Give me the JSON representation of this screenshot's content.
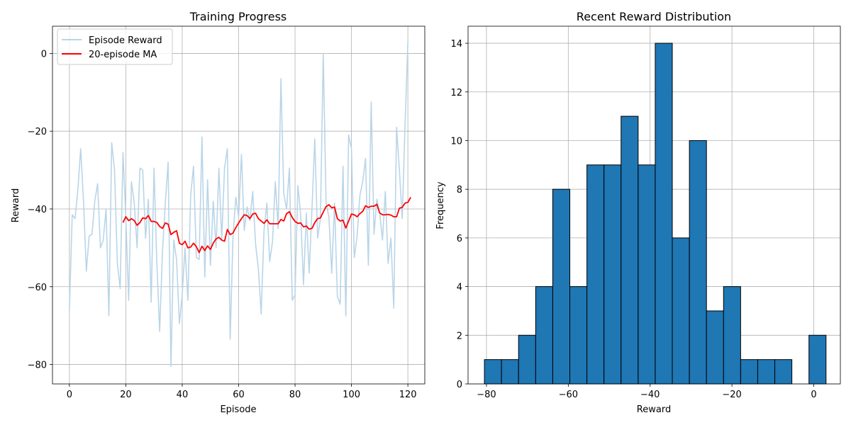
{
  "chart_data": [
    {
      "type": "line",
      "title": "Training Progress",
      "xlabel": "Episode",
      "ylabel": "Reward",
      "xlim": [
        -6,
        126
      ],
      "ylim": [
        -85,
        7
      ],
      "xticks": [
        0,
        20,
        40,
        60,
        80,
        100,
        120
      ],
      "yticks": [
        -80,
        -60,
        -40,
        -20,
        0
      ],
      "grid": true,
      "legend": "top-left",
      "series": [
        {
          "name": "Episode Reward",
          "color": "#b9d5e8",
          "x_start": 0,
          "values": [
            -66,
            -41.5,
            -42.5,
            -35,
            -24.5,
            -38,
            -56,
            -47,
            -46.5,
            -38,
            -33.5,
            -50,
            -48,
            -40,
            -67.5,
            -23,
            -30,
            -54,
            -60.5,
            -25.5,
            -42,
            -63.5,
            -33,
            -38.5,
            -50,
            -29.5,
            -30,
            -47.5,
            -37.5,
            -64,
            -29.5,
            -54,
            -71.5,
            -51,
            -38.5,
            -28,
            -80.5,
            -48,
            -53,
            -69.5,
            -62,
            -50,
            -63.5,
            -36.5,
            -29,
            -52.5,
            -53,
            -21.5,
            -57.5,
            -32.5,
            -54.5,
            -38,
            -50,
            -29.5,
            -48,
            -29.5,
            -24.5,
            -73.5,
            -47,
            -37,
            -42,
            -26,
            -45.5,
            -39.5,
            -43,
            -35.5,
            -49,
            -55.5,
            -67,
            -45.5,
            -38.5,
            -53.5,
            -48.5,
            -33,
            -45,
            -6.5,
            -36,
            -40,
            -29.5,
            -63.5,
            -62,
            -34,
            -41.5,
            -59.5,
            -41,
            -56.5,
            -40,
            -22,
            -47.5,
            -42.5,
            0,
            -38.5,
            -42,
            -56.5,
            -38.5,
            -62.5,
            -64.5,
            -29,
            -67.5,
            -21,
            -24.5,
            -52.5,
            -47,
            -36.5,
            -33,
            -27,
            -54.5,
            -12.5,
            -46.5,
            -37.5,
            -41,
            -48,
            -35.5,
            -54,
            -47.5,
            -65.5,
            -19,
            -30,
            -42.5,
            -18.5,
            3
          ]
        },
        {
          "name": "20-episode MA",
          "color": "#ff0000",
          "x_start": 19,
          "values": [
            -43.5,
            -42,
            -43,
            -42.5,
            -43,
            -44.2,
            -43.5,
            -42.3,
            -42.5,
            -41.7,
            -43.2,
            -43.2,
            -43.5,
            -44.5,
            -45,
            -43.6,
            -43.9,
            -46.6,
            -46,
            -45.6,
            -48.8,
            -49.2,
            -48.3,
            -50,
            -49.8,
            -48.8,
            -49.7,
            -51.2,
            -49.6,
            -50.7,
            -49.5,
            -50.4,
            -48.8,
            -47.7,
            -47.3,
            -48,
            -48.3,
            -45.3,
            -46.6,
            -46.2,
            -44.8,
            -43.6,
            -42.5,
            -41.5,
            -41.7,
            -42.5,
            -41.3,
            -41.1,
            -42.5,
            -43.1,
            -43.7,
            -42.8,
            -43.8,
            -43.8,
            -43.8,
            -43.8,
            -42.7,
            -43.1,
            -41.2,
            -40.7,
            -42.2,
            -43.2,
            -43.7,
            -43.6,
            -44.6,
            -44.4,
            -45.2,
            -45,
            -43.5,
            -42.5,
            -42.3,
            -40.8,
            -39.4,
            -38.9,
            -39.7,
            -39.5,
            -42.5,
            -43.1,
            -42.9,
            -44.9,
            -43.1,
            -41.3,
            -41.5,
            -42,
            -41.2,
            -40.6,
            -39.2,
            -39.6,
            -39.3,
            -39.3,
            -38.8,
            -41,
            -41.5,
            -41.5,
            -41.4,
            -41.6,
            -42,
            -42,
            -39.8,
            -39.6,
            -38.5,
            -38.3,
            -37
          ]
        }
      ]
    },
    {
      "type": "bar",
      "title": "Recent Reward Distribution",
      "xlabel": "Reward",
      "ylabel": "Frequency",
      "xlim": [
        -84.5,
        6.5
      ],
      "ylim": [
        0,
        14.7
      ],
      "xticks": [
        -80,
        -60,
        -40,
        -20,
        0
      ],
      "yticks": [
        0,
        2,
        4,
        6,
        8,
        10,
        12,
        14
      ],
      "grid": true,
      "bar_color": "#1f77b4",
      "bin_start": -80.5,
      "bin_width": 4.175,
      "values": [
        1,
        1,
        2,
        4,
        8,
        4,
        9,
        9,
        11,
        9,
        14,
        6,
        10,
        3,
        4,
        1,
        1,
        1,
        0,
        2
      ]
    }
  ]
}
